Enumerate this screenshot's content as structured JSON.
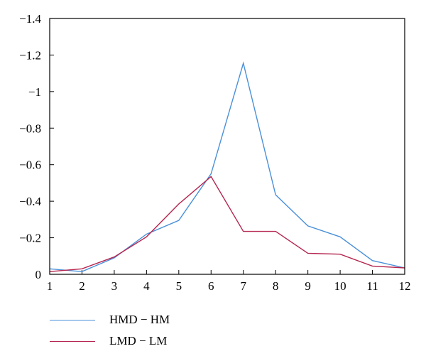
{
  "chart_data": {
    "type": "line",
    "x": [
      1,
      2,
      3,
      4,
      5,
      6,
      7,
      8,
      9,
      10,
      11,
      12
    ],
    "x_tick_labels": [
      "1",
      "2",
      "3",
      "4",
      "5",
      "6",
      "7",
      "8",
      "9",
      "10",
      "11",
      "12"
    ],
    "y_tick_labels": [
      "0",
      "−0.2",
      "−0.4",
      "−0.6",
      "−0.8",
      "−1",
      "−1.2",
      "−1.4"
    ],
    "ylim": [
      0,
      -1.4
    ],
    "y_inverted": true,
    "grid": false,
    "legend_position": "bottom-left",
    "series": [
      {
        "name": "HMD − HM",
        "color": "#4a90d9",
        "values": [
          -0.03,
          -0.015,
          -0.09,
          -0.22,
          -0.295,
          -0.55,
          -1.155,
          -0.435,
          -0.265,
          -0.205,
          -0.075,
          -0.035
        ]
      },
      {
        "name": "LMD − LM",
        "color": "#b5254f",
        "values": [
          -0.015,
          -0.03,
          -0.095,
          -0.205,
          -0.385,
          -0.535,
          -0.235,
          -0.235,
          -0.115,
          -0.11,
          -0.045,
          -0.035
        ]
      }
    ]
  }
}
